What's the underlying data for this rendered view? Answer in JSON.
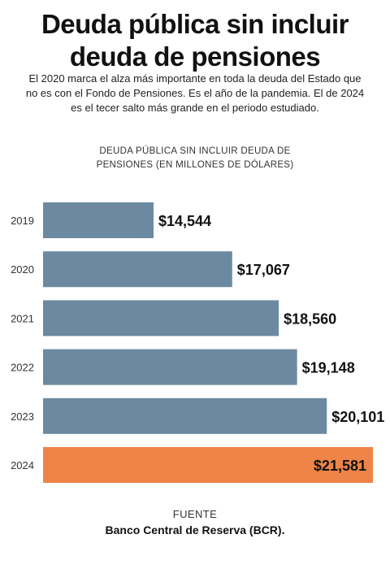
{
  "header": {
    "title_line1": "Deuda pública sin incluir",
    "title_line2": "deuda de pensiones",
    "subtitle_line1": "El 2020 marca el alza más importante en toda la deuda del Estado que",
    "subtitle_line2": "no es con el Fondo de Pensiones. Es el año de la pandemia. El de 2024",
    "subtitle_line3": "es el tecer salto más grande en el periodo estudiado."
  },
  "chart_data": {
    "type": "bar",
    "orientation": "horizontal",
    "title_line1": "DEUDA PÚBLICA SIN INCLUIR DEUDA DE",
    "title_line2": "PENSIONES (EN MILLONES DE DÓLARES)",
    "categories": [
      "2019",
      "2020",
      "2021",
      "2022",
      "2023",
      "2024"
    ],
    "values": [
      14544,
      17067,
      18560,
      19148,
      20101,
      21581
    ],
    "value_labels": [
      "$14,544",
      "$17,067",
      "$18,560",
      "$19,148",
      "$20,101",
      "$21,581"
    ],
    "xlim": [
      11000,
      21581
    ],
    "grid": false,
    "colors": {
      "default": "#6b8aa1",
      "highlight": "#ee8447",
      "highlight_label": "#111111",
      "label": "#111111"
    },
    "highlight_category": "2024"
  },
  "source": {
    "label": "FUENTE",
    "value": "Banco Central de Reserva (BCR)."
  }
}
